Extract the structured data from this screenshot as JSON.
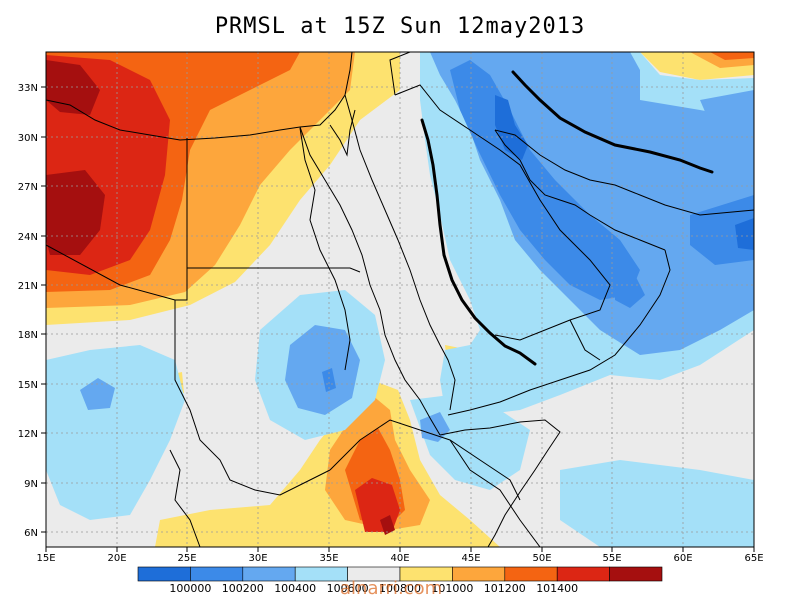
{
  "title": "PRMSL at 15Z Sun 12may2013",
  "lon_ticks": [
    "15E",
    "20E",
    "25E",
    "30E",
    "35E",
    "40E",
    "45E",
    "50E",
    "55E",
    "60E",
    "65E"
  ],
  "lat_ticks": [
    "33N",
    "30N",
    "27N",
    "24N",
    "21N",
    "18N",
    "15N",
    "12N",
    "9N",
    "6N"
  ],
  "legend": {
    "colors": [
      "#1e6ed9",
      "#3c8ae8",
      "#64a8f0",
      "#a4e0f8",
      "#ebebeb",
      "#fde26f",
      "#fda63c",
      "#f46412",
      "#dc2614",
      "#a50f0f"
    ],
    "labels": [
      "100000",
      "100200",
      "100400",
      "100600",
      "100800",
      "101000",
      "101200",
      "101400"
    ]
  },
  "watermark": "alnarri.com"
}
